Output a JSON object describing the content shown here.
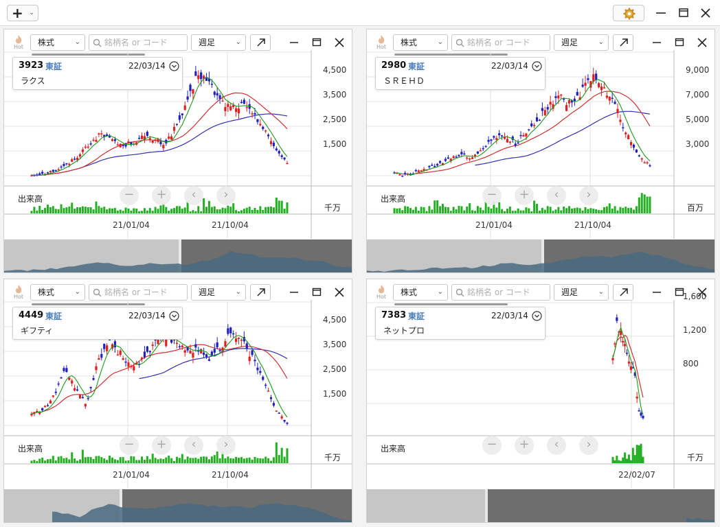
{
  "app": {
    "add_button": "+",
    "add_dropdown": "⌄",
    "settings_icon": "gear-icon",
    "window_controls": [
      "minimize-icon",
      "maximize-icon",
      "close-icon"
    ]
  },
  "panel_common": {
    "hot_label": "Hot",
    "type_select": "株式",
    "search_placeholder": "銘柄名 or コード",
    "period_select": "週足",
    "volume_label": "出来高"
  },
  "colors": {
    "up": "#e02020",
    "down": "#2020c0",
    "ma_short": "#1a9a1a",
    "ma_mid": "#d03030",
    "ma_long": "#3030b0",
    "volume": "#22b022",
    "mini": "#4a6a80"
  },
  "panels": [
    {
      "code": "3923",
      "exchange": "東証",
      "date": "22/03/14",
      "name": "ラクス",
      "y_ticks": [
        "4,500",
        "3,500",
        "2,500",
        "1,500"
      ],
      "x_ticks": [
        "21/01/04",
        "21/10/04"
      ],
      "volume_unit": "千万",
      "chart_data": {
        "type": "candlestick",
        "y_range": [
          700,
          4900
        ],
        "trend_close": [
          1000,
          1050,
          1150,
          1300,
          1600,
          2000,
          2350,
          2300,
          2000,
          2100,
          2300,
          2200,
          2050,
          2650,
          3400,
          4500,
          4100,
          3500,
          3300,
          3400,
          3000,
          2600,
          1800,
          1450
        ],
        "ma_long_visible": true
      }
    },
    {
      "code": "2980",
      "exchange": "東証",
      "date": "22/03/14",
      "name": "ＳＲＥＨＤ",
      "y_ticks": [
        "9,000",
        "7,000",
        "5,000",
        "3,000"
      ],
      "x_ticks": [
        "21/01/04",
        "21/10/04"
      ],
      "volume_unit": "百万",
      "chart_data": {
        "type": "candlestick",
        "y_range": [
          1500,
          10500
        ],
        "trend_close": [
          2300,
          2100,
          2400,
          2600,
          2900,
          3300,
          3600,
          3300,
          4100,
          5000,
          4800,
          4400,
          5500,
          6300,
          7400,
          7800,
          7200,
          8400,
          9500,
          8200,
          7000,
          5000,
          3500,
          2800
        ],
        "ma_long_visible": true
      }
    },
    {
      "code": "4449",
      "exchange": "東証",
      "date": "22/03/14",
      "name": "ギフティ",
      "y_ticks": [
        "4,500",
        "3,500",
        "2,500",
        "1,500"
      ],
      "x_ticks": [
        "21/01/04",
        "21/10/04"
      ],
      "volume_unit": "千万",
      "chart_data": {
        "type": "candlestick",
        "y_range": [
          700,
          4900
        ],
        "trend_close": [
          1400,
          1500,
          2000,
          2800,
          2200,
          1700,
          3200,
          3900,
          3400,
          3000,
          3200,
          3700,
          4000,
          3800,
          3600,
          3500,
          3300,
          3700,
          4100,
          3800,
          3200,
          2400,
          1500,
          1000
        ],
        "ma_long_visible": true
      }
    },
    {
      "code": "7383",
      "exchange": "東証",
      "date": "22/03/14",
      "name": "ネットプロ",
      "y_ticks": [
        "1,600",
        "1,200",
        "800"
      ],
      "x_ticks": [
        "22/02/07"
      ],
      "volume_unit": "千万",
      "chart_data": {
        "type": "candlestick",
        "y_range": [
          450,
          1800
        ],
        "trend_close": [
          1300,
          1650,
          1500,
          1350,
          1200,
          1100,
          680,
          620
        ],
        "ma_long_visible": false
      }
    }
  ]
}
